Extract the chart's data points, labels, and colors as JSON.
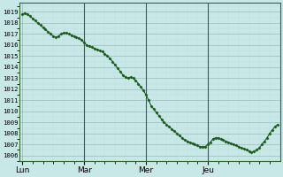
{
  "bg_color": "#c8e8e8",
  "grid_major_color": "#99bbbb",
  "grid_minor_color": "#bbdddd",
  "line_color": "#1a5c1a",
  "marker_color": "#1a5c1a",
  "spine_color": "#336633",
  "vline_color": "#336633",
  "ylim": [
    1005.5,
    1019.8
  ],
  "yticks": [
    1006,
    1007,
    1008,
    1009,
    1010,
    1011,
    1012,
    1013,
    1014,
    1015,
    1016,
    1017,
    1018,
    1019
  ],
  "xlim": [
    -1,
    100
  ],
  "xtick_pos": [
    0,
    24,
    48,
    72
  ],
  "xtick_labels": [
    "Lun",
    "Mar",
    "Mer",
    "Jeu"
  ],
  "vline_pos": [
    24,
    48,
    72
  ],
  "y": [
    1018.8,
    1018.9,
    1018.8,
    1018.6,
    1018.4,
    1018.2,
    1018.0,
    1017.8,
    1017.6,
    1017.4,
    1017.2,
    1017.0,
    1016.8,
    1016.7,
    1016.8,
    1017.0,
    1017.1,
    1017.1,
    1017.0,
    1016.9,
    1016.8,
    1016.7,
    1016.6,
    1016.5,
    1016.2,
    1016.0,
    1015.9,
    1015.8,
    1015.7,
    1015.6,
    1015.5,
    1015.4,
    1015.2,
    1015.0,
    1014.8,
    1014.5,
    1014.2,
    1013.9,
    1013.6,
    1013.3,
    1013.1,
    1013.0,
    1013.1,
    1013.0,
    1012.8,
    1012.5,
    1012.2,
    1011.9,
    1011.5,
    1011.0,
    1010.5,
    1010.2,
    1009.9,
    1009.6,
    1009.3,
    1009.0,
    1008.8,
    1008.6,
    1008.4,
    1008.2,
    1008.0,
    1007.8,
    1007.6,
    1007.4,
    1007.3,
    1007.2,
    1007.1,
    1007.0,
    1006.9,
    1006.8,
    1006.8,
    1006.8,
    1007.0,
    1007.2,
    1007.5,
    1007.6,
    1007.6,
    1007.5,
    1007.4,
    1007.3,
    1007.2,
    1007.1,
    1007.0,
    1006.9,
    1006.8,
    1006.7,
    1006.6,
    1006.5,
    1006.4,
    1006.3,
    1006.4,
    1006.5,
    1006.7,
    1007.0,
    1007.3,
    1007.6,
    1008.0,
    1008.3,
    1008.6,
    1008.8
  ]
}
